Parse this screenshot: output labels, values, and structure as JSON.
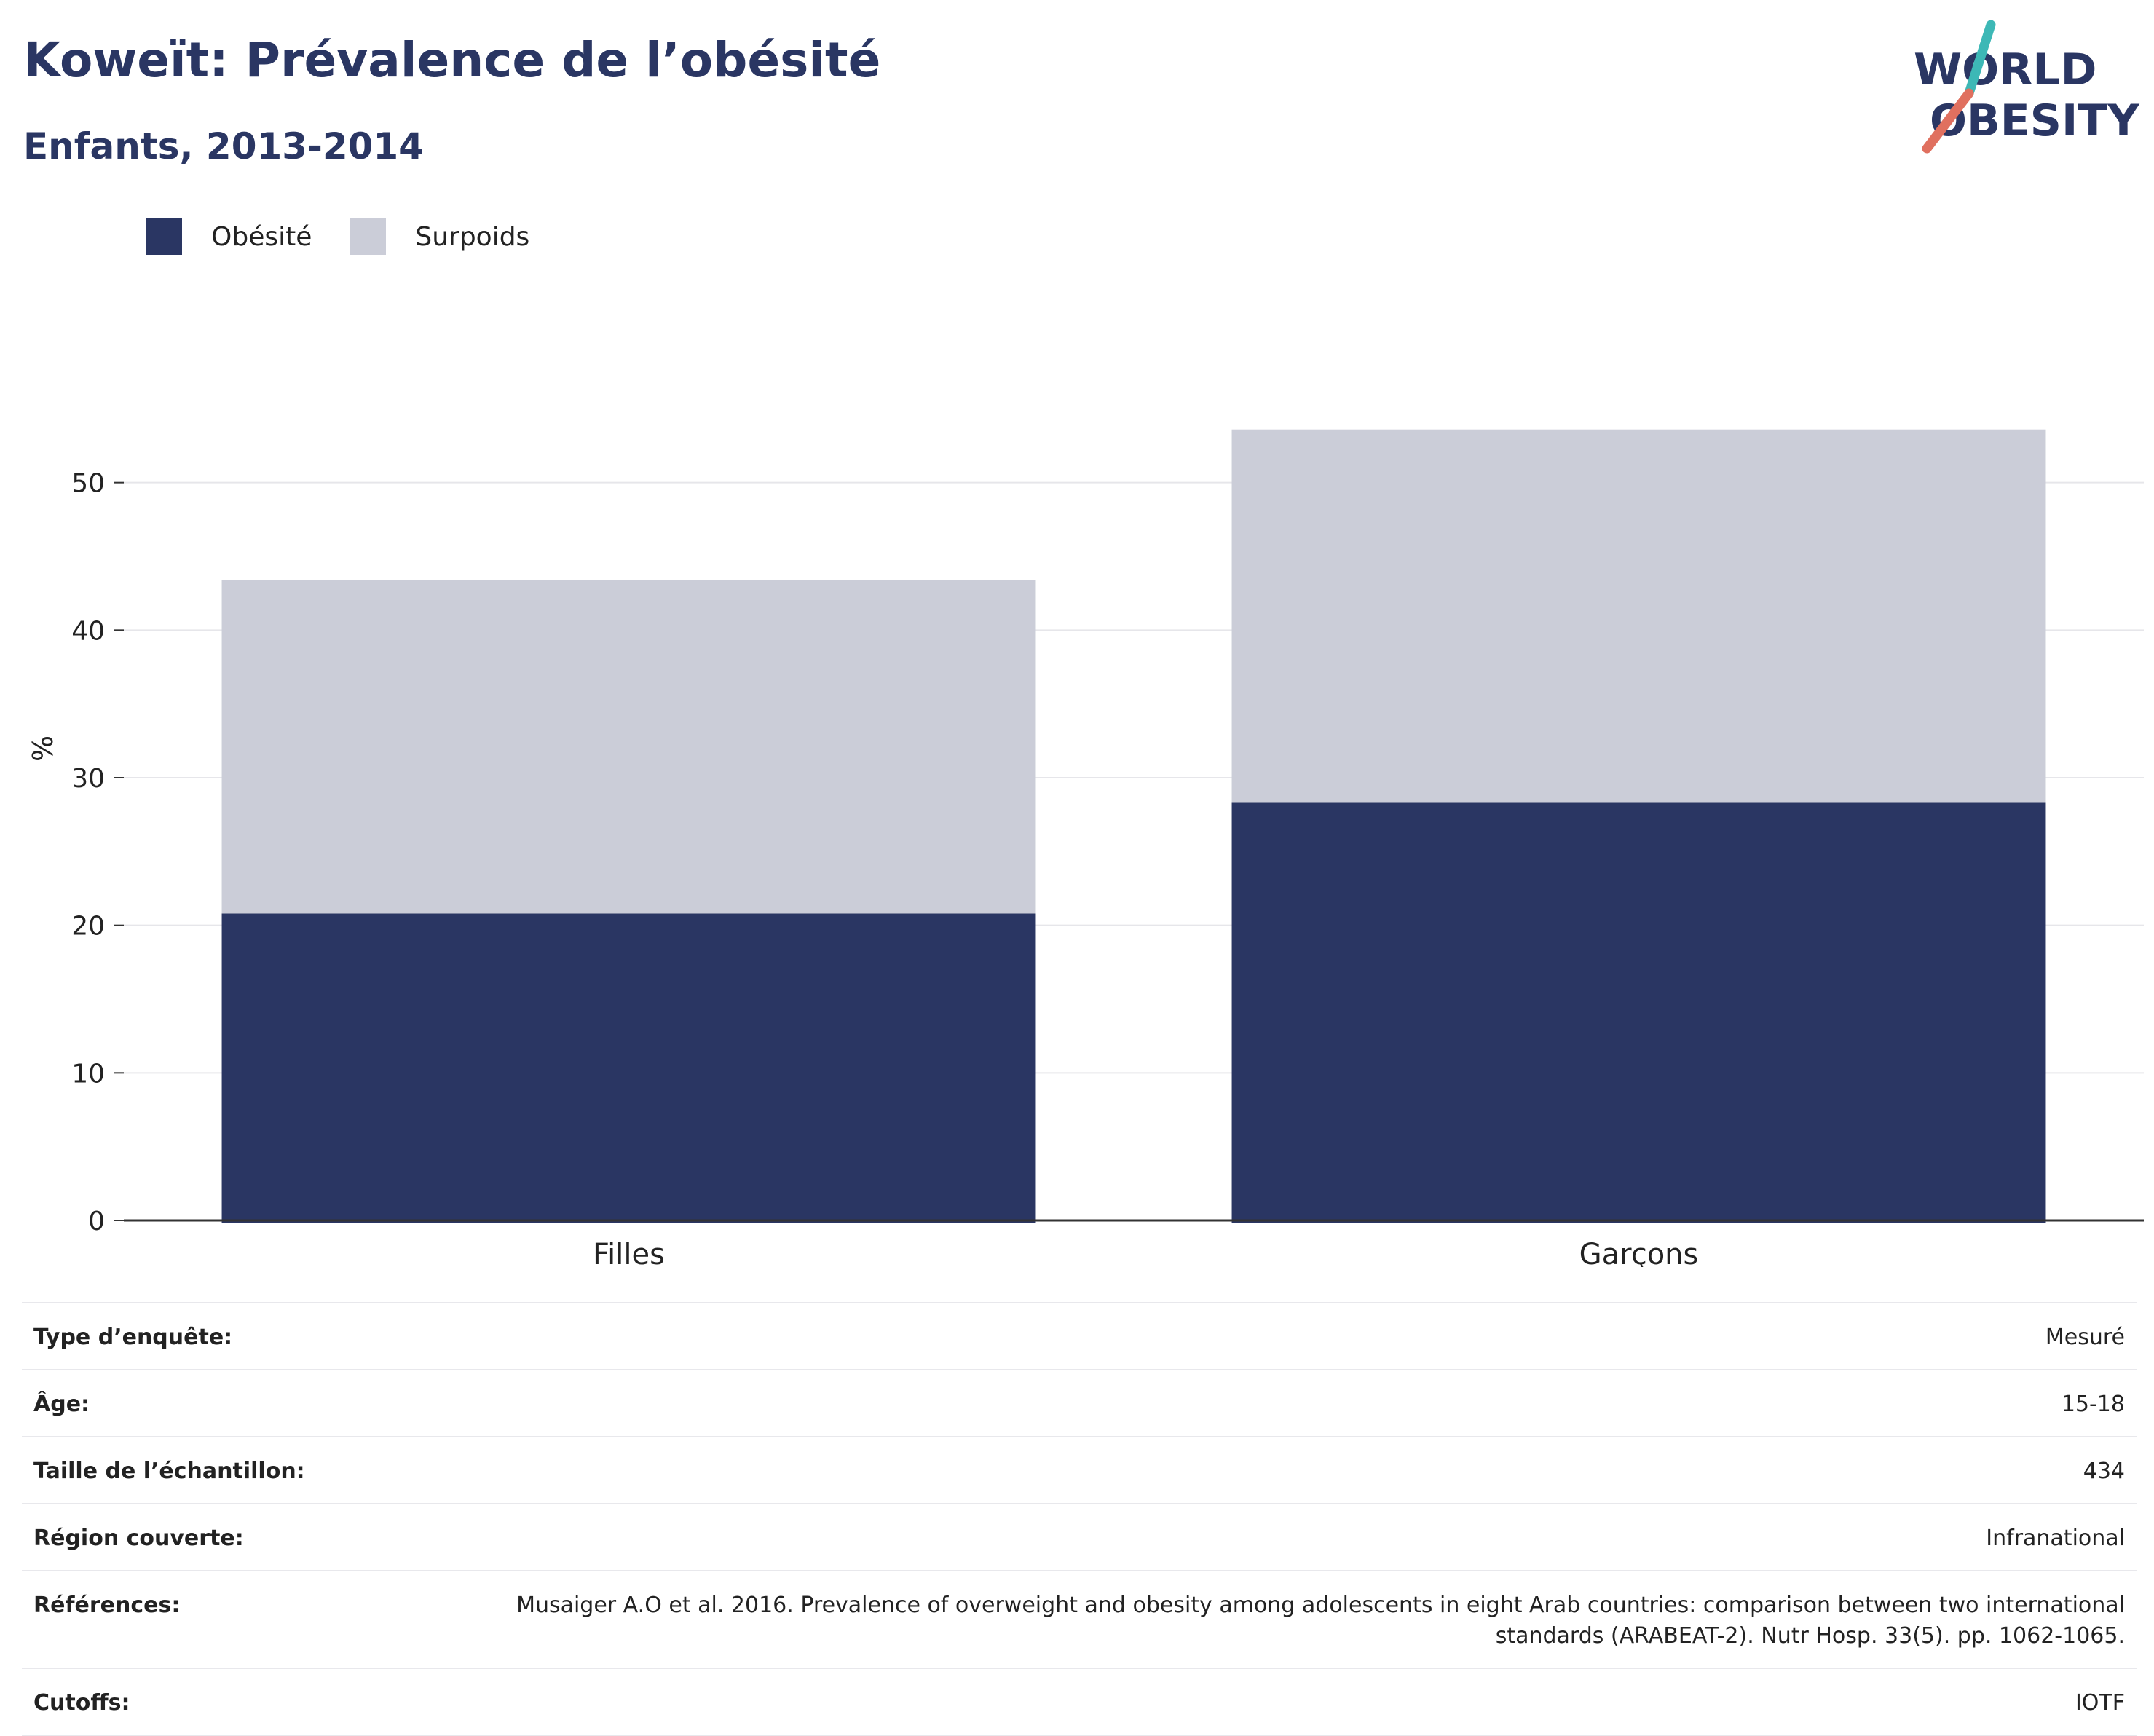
{
  "header": {
    "title": "Koweït: Prévalence de l’obésité",
    "subtitle": "Enfants, 2013-2014"
  },
  "logo": {
    "line1": "WORLD",
    "line2": "OBESITY",
    "accent_teal": "#3db8b6",
    "accent_coral": "#e0705f",
    "text_color": "#2a3663"
  },
  "colors": {
    "obesity": "#2a3663",
    "overweight": "#cbcdd8",
    "grid": "#e6e6ea",
    "axis": "#333333",
    "tick_text": "#222222"
  },
  "chart_data": {
    "type": "bar",
    "stacked": true,
    "categories": [
      "Filles",
      "Garçons"
    ],
    "series": [
      {
        "name": "Obésité",
        "values": [
          20.8,
          28.3
        ]
      },
      {
        "name": "Surpoids",
        "values": [
          22.6,
          25.3
        ]
      }
    ],
    "ylabel": "%",
    "ylim": [
      0,
      60
    ],
    "yticks": [
      0,
      10,
      20,
      30,
      40,
      50
    ],
    "grid": true,
    "legend": "top-left"
  },
  "meta": [
    {
      "label": "Type d’enquête:",
      "value": "Mesuré"
    },
    {
      "label": "Âge:",
      "value": "15-18"
    },
    {
      "label": "Taille de l’échantillon:",
      "value": "434"
    },
    {
      "label": "Région couverte:",
      "value": "Infranational"
    },
    {
      "label": "Références:",
      "value": "Musaiger A.O et al. 2016. Prevalence of overweight and obesity among adolescents in eight Arab countries: comparison between two international standards (ARABEAT-2). Nutr Hosp. 33(5). pp. 1062-1065."
    },
    {
      "label": "Cutoffs:",
      "value": "IOTF"
    }
  ]
}
